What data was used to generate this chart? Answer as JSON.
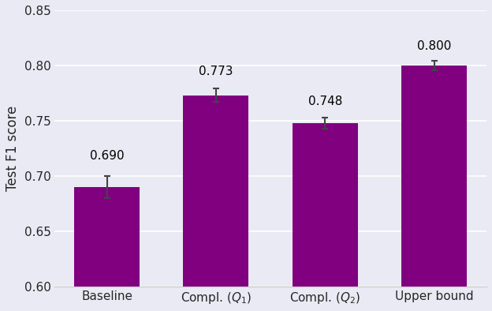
{
  "categories": [
    "Baseline",
    "Compl. ($Q_1$)",
    "Compl. ($Q_2$)",
    "Upper bound"
  ],
  "values": [
    0.69,
    0.773,
    0.748,
    0.8
  ],
  "errors": [
    0.01,
    0.006,
    0.005,
    0.004
  ],
  "bar_color": "#800080",
  "ylabel": "Test F1 score",
  "ylim": [
    0.6,
    0.85
  ],
  "yticks": [
    0.6,
    0.65,
    0.7,
    0.75,
    0.8,
    0.85
  ],
  "bar_width": 0.6,
  "background_color": "#eaeaf4",
  "grid_color": "#ffffff",
  "annotations": [
    "0.690",
    "0.773",
    "0.748",
    "0.800"
  ],
  "annotation_offsets": [
    0.013,
    0.01,
    0.009,
    0.008
  ],
  "figsize": [
    6.24,
    3.94
  ],
  "dpi": 100
}
